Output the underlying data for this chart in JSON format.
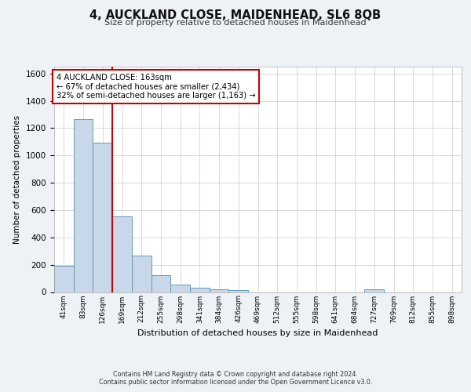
{
  "title": "4, AUCKLAND CLOSE, MAIDENHEAD, SL6 8QB",
  "subtitle": "Size of property relative to detached houses in Maidenhead",
  "xlabel": "Distribution of detached houses by size in Maidenhead",
  "ylabel": "Number of detached properties",
  "footer_line1": "Contains HM Land Registry data © Crown copyright and database right 2024.",
  "footer_line2": "Contains public sector information licensed under the Open Government Licence v3.0.",
  "categories": [
    "41sqm",
    "83sqm",
    "126sqm",
    "169sqm",
    "212sqm",
    "255sqm",
    "298sqm",
    "341sqm",
    "384sqm",
    "426sqm",
    "469sqm",
    "512sqm",
    "555sqm",
    "598sqm",
    "641sqm",
    "684sqm",
    "727sqm",
    "769sqm",
    "812sqm",
    "855sqm",
    "898sqm"
  ],
  "values": [
    195,
    1265,
    1095,
    555,
    265,
    125,
    55,
    32,
    20,
    12,
    0,
    0,
    0,
    0,
    0,
    0,
    20,
    0,
    0,
    0,
    0
  ],
  "bar_color": "#c8d8e8",
  "bar_edge_color": "#6699bb",
  "vline_x": 3,
  "vline_color": "#cc0000",
  "annotation_text": "4 AUCKLAND CLOSE: 163sqm\n← 67% of detached houses are smaller (2,434)\n32% of semi-detached houses are larger (1,163) →",
  "annotation_box_color": "#cc0000",
  "ylim": [
    0,
    1650
  ],
  "yticks": [
    0,
    200,
    400,
    600,
    800,
    1000,
    1200,
    1400,
    1600
  ],
  "bg_color": "#eef2f7",
  "plot_bg_color": "#ffffff",
  "grid_color": "#cccccc"
}
